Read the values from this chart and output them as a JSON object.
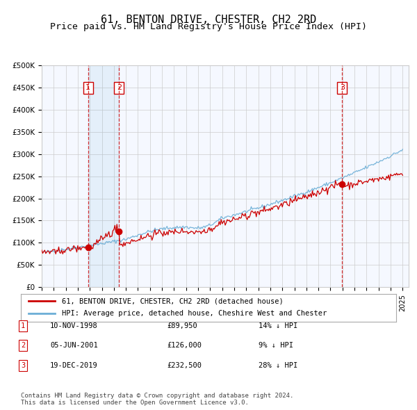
{
  "title": "61, BENTON DRIVE, CHESTER, CH2 2RD",
  "subtitle": "Price paid vs. HM Land Registry's House Price Index (HPI)",
  "title_fontsize": 11,
  "subtitle_fontsize": 9.5,
  "ylabel": "",
  "ylim": [
    0,
    500000
  ],
  "yticks": [
    0,
    50000,
    100000,
    150000,
    200000,
    250000,
    300000,
    350000,
    400000,
    450000,
    500000
  ],
  "ytick_labels": [
    "£0",
    "£50K",
    "£100K",
    "£150K",
    "£200K",
    "£250K",
    "£300K",
    "£350K",
    "£400K",
    "£450K",
    "£500K"
  ],
  "x_start_year": 1995,
  "x_end_year": 2025,
  "hpi_color": "#6baed6",
  "price_color": "#cc0000",
  "purchase_marker_color": "#cc0000",
  "purchase_dates": [
    1998.86,
    2001.43,
    2019.97
  ],
  "purchase_prices": [
    89950,
    126000,
    232500
  ],
  "purchase_labels": [
    "1",
    "2",
    "3"
  ],
  "vline_shade_pairs": [
    [
      1998.86,
      2001.43
    ]
  ],
  "vlines": [
    1998.86,
    2001.43,
    2019.97
  ],
  "legend_line1": "61, BENTON DRIVE, CHESTER, CH2 2RD (detached house)",
  "legend_line2": "HPI: Average price, detached house, Cheshire West and Chester",
  "table_rows": [
    {
      "num": "1",
      "date": "10-NOV-1998",
      "price": "£89,950",
      "hpi": "14% ↓ HPI"
    },
    {
      "num": "2",
      "date": "05-JUN-2001",
      "price": "£126,000",
      "hpi": "9% ↓ HPI"
    },
    {
      "num": "3",
      "date": "19-DEC-2019",
      "price": "£232,500",
      "hpi": "28% ↓ HPI"
    }
  ],
  "footer": "Contains HM Land Registry data © Crown copyright and database right 2024.\nThis data is licensed under the Open Government Licence v3.0.",
  "background_color": "#ffffff",
  "plot_bg_color": "#f5f8ff",
  "grid_color": "#cccccc"
}
